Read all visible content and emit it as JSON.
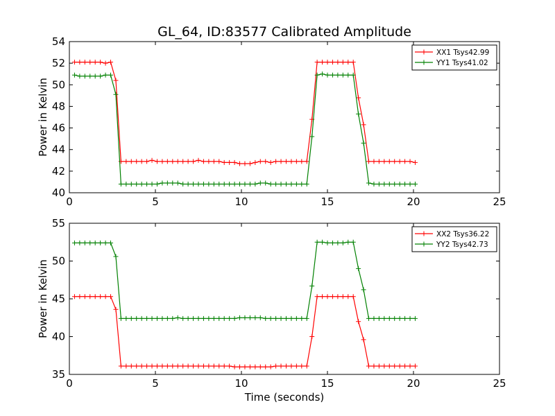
{
  "title": "GL_64, ID:83577 Calibrated Amplitude",
  "xlabel": "Time (seconds)",
  "chart_data": [
    {
      "type": "line",
      "title": "GL_64, ID:83577 Calibrated Amplitude",
      "xlabel": "",
      "ylabel": "Power in Kelvin",
      "xlim": [
        0,
        25
      ],
      "ylim": [
        40,
        54
      ],
      "xticks": [
        0,
        5,
        10,
        15,
        20,
        25
      ],
      "yticks": [
        40,
        42,
        44,
        46,
        48,
        50,
        52,
        54
      ],
      "legend_position": "top-right",
      "grid": false,
      "x": [
        0.3,
        0.6,
        0.9,
        1.2,
        1.5,
        1.8,
        2.1,
        2.4,
        2.7,
        3.0,
        3.3,
        3.6,
        3.9,
        4.2,
        4.5,
        4.8,
        5.1,
        5.4,
        5.7,
        6.0,
        6.3,
        6.6,
        6.9,
        7.2,
        7.5,
        7.8,
        8.1,
        8.4,
        8.7,
        9.0,
        9.3,
        9.6,
        9.9,
        10.2,
        10.5,
        10.8,
        11.1,
        11.4,
        11.7,
        12.0,
        12.3,
        12.6,
        12.9,
        13.2,
        13.5,
        13.8,
        14.1,
        14.4,
        14.7,
        15.0,
        15.3,
        15.6,
        15.9,
        16.2,
        16.5,
        16.8,
        17.1,
        17.4,
        17.7,
        18.0,
        18.3,
        18.6,
        18.9,
        19.2,
        19.5,
        19.8,
        20.1
      ],
      "series": [
        {
          "name": "XX1 Tsys42.99",
          "color": "#ff0000",
          "values": [
            52.1,
            52.1,
            52.1,
            52.1,
            52.1,
            52.1,
            52.0,
            52.1,
            50.4,
            42.9,
            42.9,
            42.9,
            42.9,
            42.9,
            42.9,
            43.0,
            42.9,
            42.9,
            42.9,
            42.9,
            42.9,
            42.9,
            42.9,
            42.9,
            43.0,
            42.9,
            42.9,
            42.9,
            42.9,
            42.8,
            42.8,
            42.8,
            42.7,
            42.7,
            42.7,
            42.8,
            42.9,
            42.9,
            42.8,
            42.9,
            42.9,
            42.9,
            42.9,
            42.9,
            42.9,
            42.9,
            46.8,
            52.1,
            52.1,
            52.1,
            52.1,
            52.1,
            52.1,
            52.1,
            52.1,
            48.8,
            46.3,
            42.9,
            42.9,
            42.9,
            42.9,
            42.9,
            42.9,
            42.9,
            42.9,
            42.9,
            42.8
          ]
        },
        {
          "name": "YY1 Tsys41.02",
          "color": "#008000",
          "values": [
            50.9,
            50.8,
            50.8,
            50.8,
            50.8,
            50.8,
            50.9,
            50.9,
            49.1,
            40.8,
            40.8,
            40.8,
            40.8,
            40.8,
            40.8,
            40.8,
            40.8,
            40.9,
            40.9,
            40.9,
            40.9,
            40.8,
            40.8,
            40.8,
            40.8,
            40.8,
            40.8,
            40.8,
            40.8,
            40.8,
            40.8,
            40.8,
            40.8,
            40.8,
            40.8,
            40.8,
            40.9,
            40.9,
            40.8,
            40.8,
            40.8,
            40.8,
            40.8,
            40.8,
            40.8,
            40.8,
            45.2,
            50.9,
            51.0,
            50.9,
            50.9,
            50.9,
            50.9,
            50.9,
            50.9,
            47.3,
            44.6,
            40.9,
            40.8,
            40.8,
            40.8,
            40.8,
            40.8,
            40.8,
            40.8,
            40.8,
            40.8
          ]
        }
      ]
    },
    {
      "type": "line",
      "title": "",
      "xlabel": "Time (seconds)",
      "ylabel": "Power in Kelvin",
      "xlim": [
        0,
        25
      ],
      "ylim": [
        35,
        55
      ],
      "xticks": [
        0,
        5,
        10,
        15,
        20,
        25
      ],
      "yticks": [
        35,
        40,
        45,
        50,
        55
      ],
      "legend_position": "top-right",
      "grid": false,
      "x": [
        0.3,
        0.6,
        0.9,
        1.2,
        1.5,
        1.8,
        2.1,
        2.4,
        2.7,
        3.0,
        3.3,
        3.6,
        3.9,
        4.2,
        4.5,
        4.8,
        5.1,
        5.4,
        5.7,
        6.0,
        6.3,
        6.6,
        6.9,
        7.2,
        7.5,
        7.8,
        8.1,
        8.4,
        8.7,
        9.0,
        9.3,
        9.6,
        9.9,
        10.2,
        10.5,
        10.8,
        11.1,
        11.4,
        11.7,
        12.0,
        12.3,
        12.6,
        12.9,
        13.2,
        13.5,
        13.8,
        14.1,
        14.4,
        14.7,
        15.0,
        15.3,
        15.6,
        15.9,
        16.2,
        16.5,
        16.8,
        17.1,
        17.4,
        17.7,
        18.0,
        18.3,
        18.6,
        18.9,
        19.2,
        19.5,
        19.8,
        20.1
      ],
      "series": [
        {
          "name": "XX2 Tsys36.22",
          "color": "#ff0000",
          "values": [
            45.3,
            45.3,
            45.3,
            45.3,
            45.3,
            45.3,
            45.3,
            45.3,
            43.6,
            36.1,
            36.1,
            36.1,
            36.1,
            36.1,
            36.1,
            36.1,
            36.1,
            36.1,
            36.1,
            36.1,
            36.1,
            36.1,
            36.1,
            36.1,
            36.1,
            36.1,
            36.1,
            36.1,
            36.1,
            36.1,
            36.1,
            36.0,
            36.0,
            36.0,
            36.0,
            36.0,
            36.0,
            36.0,
            36.0,
            36.1,
            36.1,
            36.1,
            36.1,
            36.1,
            36.1,
            36.1,
            40.0,
            45.3,
            45.3,
            45.3,
            45.3,
            45.3,
            45.3,
            45.3,
            45.3,
            42.0,
            39.6,
            36.1,
            36.1,
            36.1,
            36.1,
            36.1,
            36.1,
            36.1,
            36.1,
            36.1,
            36.1
          ]
        },
        {
          "name": "YY2 Tsys42.73",
          "color": "#008000",
          "values": [
            52.4,
            52.4,
            52.4,
            52.4,
            52.4,
            52.4,
            52.4,
            52.4,
            50.6,
            42.4,
            42.4,
            42.4,
            42.4,
            42.4,
            42.4,
            42.4,
            42.4,
            42.4,
            42.4,
            42.4,
            42.5,
            42.4,
            42.4,
            42.4,
            42.4,
            42.4,
            42.4,
            42.4,
            42.4,
            42.4,
            42.4,
            42.4,
            42.5,
            42.5,
            42.5,
            42.5,
            42.5,
            42.4,
            42.4,
            42.4,
            42.4,
            42.4,
            42.4,
            42.4,
            42.4,
            42.4,
            46.7,
            52.5,
            52.5,
            52.4,
            52.4,
            52.4,
            52.4,
            52.5,
            52.5,
            49.0,
            46.2,
            42.4,
            42.4,
            42.4,
            42.4,
            42.4,
            42.4,
            42.4,
            42.4,
            42.4,
            42.4
          ]
        }
      ]
    }
  ]
}
